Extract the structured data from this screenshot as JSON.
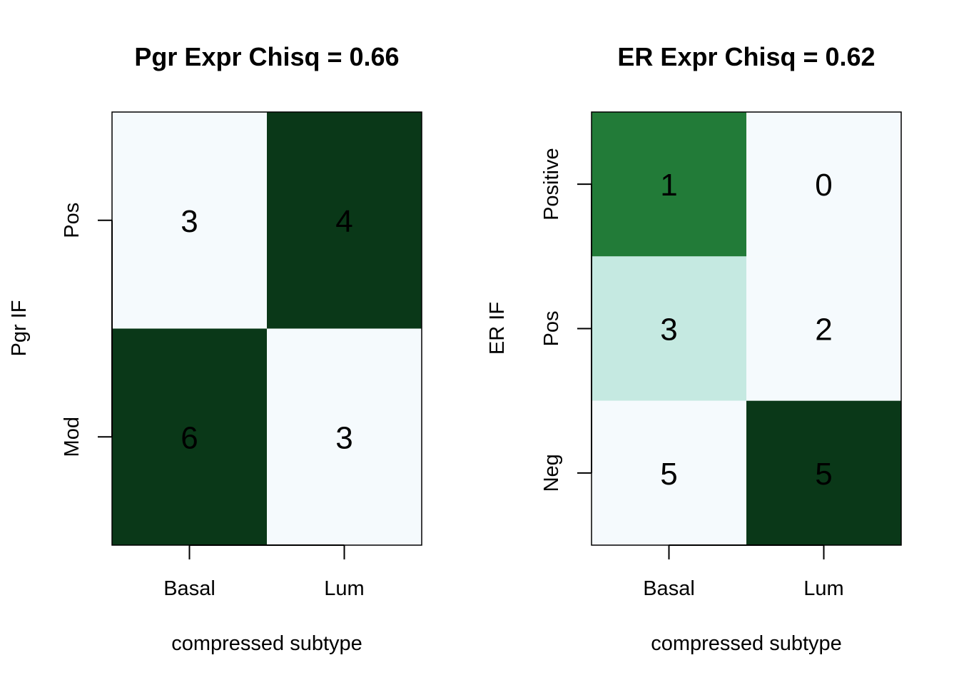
{
  "chart_data": [
    {
      "type": "heatmap",
      "title": "Pgr Expr Chisq = 0.66",
      "xlabel": "compressed subtype",
      "ylabel": "Pgr IF",
      "x_categories": [
        "Basal",
        "Lum"
      ],
      "y_categories": [
        "Pos",
        "Mod"
      ],
      "values": [
        [
          3,
          4
        ],
        [
          6,
          3
        ]
      ],
      "cell_colors": [
        [
          "#f5fafd",
          "#0a3818"
        ],
        [
          "#0a3818",
          "#f5fafd"
        ]
      ]
    },
    {
      "type": "heatmap",
      "title": "ER Expr Chisq = 0.62",
      "xlabel": "compressed subtype",
      "ylabel": "ER IF",
      "x_categories": [
        "Basal",
        "Lum"
      ],
      "y_categories": [
        "Positive",
        "Pos",
        "Neg"
      ],
      "values": [
        [
          1,
          0
        ],
        [
          3,
          2
        ],
        [
          5,
          5
        ]
      ],
      "cell_colors": [
        [
          "#227b38",
          "#f5fafd"
        ],
        [
          "#c5e9e1",
          "#f5fafd"
        ],
        [
          "#f5fafd",
          "#0a3818"
        ]
      ]
    }
  ]
}
